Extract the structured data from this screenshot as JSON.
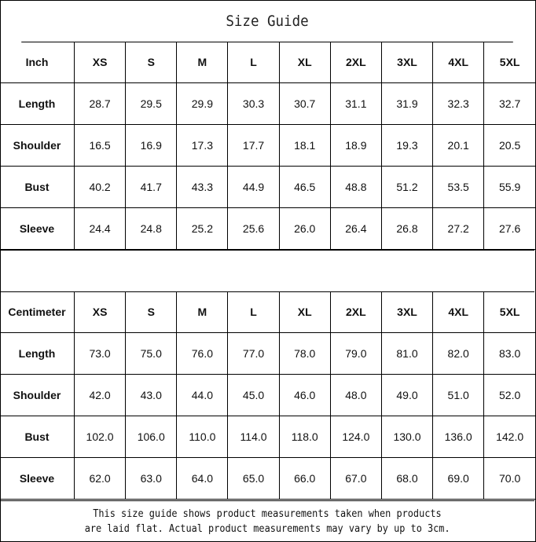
{
  "title": "Size Guide",
  "sizes": [
    "XS",
    "S",
    "M",
    "L",
    "XL",
    "2XL",
    "3XL",
    "4XL",
    "5XL"
  ],
  "inch": {
    "unit_label": "Inch",
    "rows": [
      {
        "label": "Length",
        "values": [
          "28.7",
          "29.5",
          "29.9",
          "30.3",
          "30.7",
          "31.1",
          "31.9",
          "32.3",
          "32.7"
        ]
      },
      {
        "label": "Shoulder",
        "values": [
          "16.5",
          "16.9",
          "17.3",
          "17.7",
          "18.1",
          "18.9",
          "19.3",
          "20.1",
          "20.5"
        ]
      },
      {
        "label": "Bust",
        "values": [
          "40.2",
          "41.7",
          "43.3",
          "44.9",
          "46.5",
          "48.8",
          "51.2",
          "53.5",
          "55.9"
        ]
      },
      {
        "label": "Sleeve",
        "values": [
          "24.4",
          "24.8",
          "25.2",
          "25.6",
          "26.0",
          "26.4",
          "26.8",
          "27.2",
          "27.6"
        ]
      }
    ]
  },
  "centimeter": {
    "unit_label": "Centimeter",
    "rows": [
      {
        "label": "Length",
        "values": [
          "73.0",
          "75.0",
          "76.0",
          "77.0",
          "78.0",
          "79.0",
          "81.0",
          "82.0",
          "83.0"
        ]
      },
      {
        "label": "Shoulder",
        "values": [
          "42.0",
          "43.0",
          "44.0",
          "45.0",
          "46.0",
          "48.0",
          "49.0",
          "51.0",
          "52.0"
        ]
      },
      {
        "label": "Bust",
        "values": [
          "102.0",
          "106.0",
          "110.0",
          "114.0",
          "118.0",
          "124.0",
          "130.0",
          "136.0",
          "142.0"
        ]
      },
      {
        "label": "Sleeve",
        "values": [
          "62.0",
          "63.0",
          "64.0",
          "65.0",
          "66.0",
          "67.0",
          "68.0",
          "69.0",
          "70.0"
        ]
      }
    ]
  },
  "note": {
    "line1": "This size guide shows product measurements taken when products",
    "line2": "are laid flat. Actual product measurements may vary by up to 3cm."
  }
}
